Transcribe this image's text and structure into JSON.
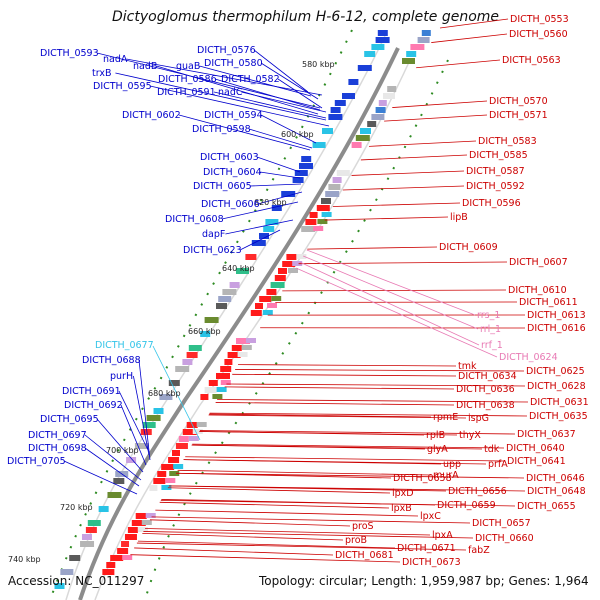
{
  "title": "Dictyoglomus thermophilum H-6-12, complete genome",
  "accession": "Accession: NC_011297",
  "topology": "Topology: circular; Length: 1,959,987 bp; Genes: 1,964",
  "colors": {
    "left_labels": "#0000cc",
    "right_labels": "#cc0000",
    "rna_labels": "#e87ab4",
    "highlight_label": "#33c4e8",
    "backbone": "#8c8c8c",
    "tick_dots": "#2e8b22"
  },
  "kbp_ticks": [
    "580 kbp",
    "600 kbp",
    "620 kbp",
    "640 kbp",
    "660 kbp",
    "680 kbp",
    "700 kbp",
    "720 kbp",
    "740 kbp"
  ],
  "left_labels": [
    "DICTH_0593",
    "nadA",
    "nadB",
    "trxB",
    "DICTH_0595",
    "DICTH_0576",
    "guaB",
    "DICTH_0580",
    "DICTH_0586",
    "DICTH_0582",
    "DICTH_0591",
    "nadC",
    "DICTH_0602",
    "DICTH_0594",
    "DICTH_0598",
    "DICTH_0603",
    "DICTH_0604",
    "DICTH_0605",
    "DICTH_0606",
    "DICTH_0608",
    "dapF",
    "DICTH_0623",
    "DICTH_0688",
    "purH",
    "DICTH_0691",
    "DICTH_0692",
    "DICTH_0695",
    "DICTH_0697",
    "DICTH_0698",
    "DICTH_0705"
  ],
  "highlight_label": "DICTH_0677",
  "right_labels": [
    "DICTH_0553",
    "DICTH_0560",
    "DICTH_0563",
    "DICTH_0570",
    "DICTH_0571",
    "DICTH_0583",
    "DICTH_0585",
    "DICTH_0587",
    "DICTH_0592",
    "DICTH_0596",
    "lipB",
    "DICTH_0609",
    "DICTH_0607",
    "DICTH_0610",
    "DICTH_0611",
    "DICTH_0613",
    "DICTH_0616",
    "DICTH_0625",
    "DICTH_0628",
    "tmk",
    "DICTH_0634",
    "DICTH_0636",
    "DICTH_0631",
    "DICTH_0638",
    "DICTH_0635",
    "rpmE",
    "ispG",
    "DICTH_0637",
    "rplB",
    "thyX",
    "tdk",
    "DICTH_0640",
    "glyA",
    "prfA",
    "DICTH_0641",
    "upp",
    "DICTH_0646",
    "murA",
    "DICTH_0648",
    "DICTH_0658",
    "DICTH_0656",
    "lpxD",
    "DICTH_0659",
    "DICTH_0655",
    "lpxB",
    "lpxC",
    "DICTH_0657",
    "proS",
    "lpxA",
    "DICTH_0660",
    "proB",
    "DICTH_0671",
    "fabZ",
    "DICTH_0681",
    "DICTH_0673"
  ],
  "rna_labels": [
    "rrs_1",
    "rrl_1",
    "rrf_1",
    "DICTH_0624"
  ]
}
